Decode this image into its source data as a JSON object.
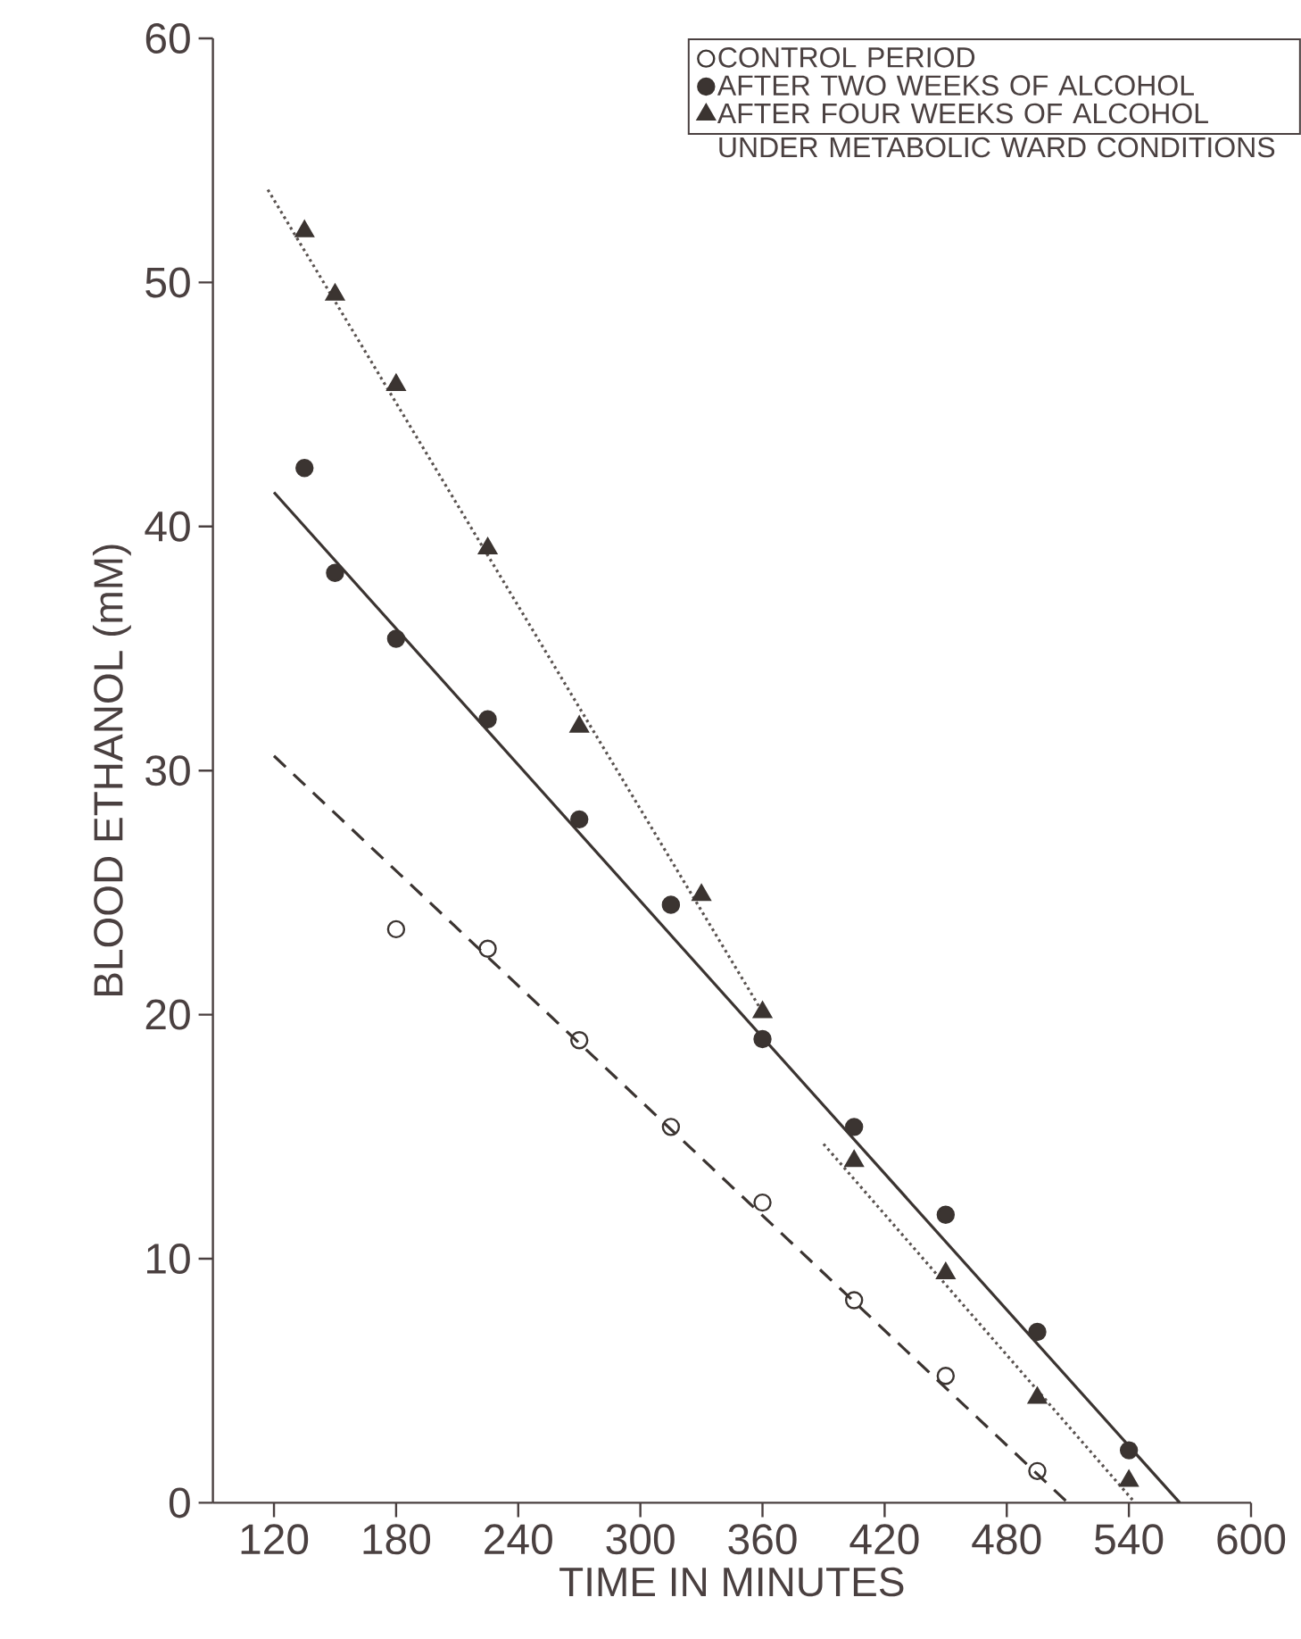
{
  "chart_data": {
    "type": "scatter",
    "xlabel": "TIME IN MINUTES",
    "ylabel": "BLOOD ETHANOL (mM)",
    "xlim": [
      90,
      600
    ],
    "ylim": [
      0,
      60
    ],
    "xticks": [
      120,
      180,
      240,
      300,
      360,
      420,
      480,
      540,
      600
    ],
    "yticks": [
      0,
      10,
      20,
      30,
      40,
      50,
      60
    ],
    "legend": "top right",
    "grid": false,
    "series": [
      {
        "name": "CONTROL PERIOD",
        "type": "scatter",
        "marker": "open circle",
        "color": "#3b3431",
        "x": [
          180,
          225,
          270,
          315,
          360,
          405,
          450,
          495
        ],
        "values": [
          23.5,
          22.7,
          18.95,
          15.4,
          12.3,
          8.3,
          5.2,
          1.3
        ]
      },
      {
        "name": "AFTER TWO WEEKS OF ALCOHOL",
        "type": "scatter",
        "marker": "circle",
        "color": "#3b3431",
        "x": [
          135,
          150,
          180,
          225,
          270,
          315,
          360,
          405,
          450,
          495,
          540
        ],
        "values": [
          42.4,
          38.1,
          35.4,
          32.1,
          28.0,
          24.5,
          19.0,
          15.4,
          11.8,
          7.0,
          2.15
        ]
      },
      {
        "name": "AFTER FOUR WEEKS OF ALCOHOL UNDER METABOLIC WARD CONDITIONS",
        "type": "scatter",
        "marker": "triangle",
        "color": "#3b3431",
        "x": [
          135,
          150,
          180,
          225,
          270,
          330,
          360,
          405,
          450,
          495,
          540
        ],
        "values": [
          52.1,
          49.5,
          45.8,
          39.1,
          31.8,
          24.9,
          20.1,
          14.0,
          9.4,
          4.3,
          0.9
        ]
      },
      {
        "type": "line",
        "marker": "none",
        "line_style": "dashed",
        "color": "#3b3431",
        "x": [
          120,
          510
        ],
        "values": [
          30.6,
          0
        ]
      },
      {
        "type": "line",
        "marker": "none",
        "line_style": "solid",
        "color": "#3b3431",
        "x": [
          120,
          565
        ],
        "values": [
          41.4,
          0
        ]
      },
      {
        "type": "line",
        "marker": "none",
        "line_style": "dotted",
        "color": "#5a5350",
        "x": [
          117,
          360
        ],
        "values": [
          53.8,
          20.1
        ]
      },
      {
        "type": "line",
        "marker": "none",
        "line_style": "dotted",
        "color": "#5a5350",
        "x": [
          390,
          543
        ],
        "values": [
          14.7,
          0
        ]
      }
    ]
  }
}
